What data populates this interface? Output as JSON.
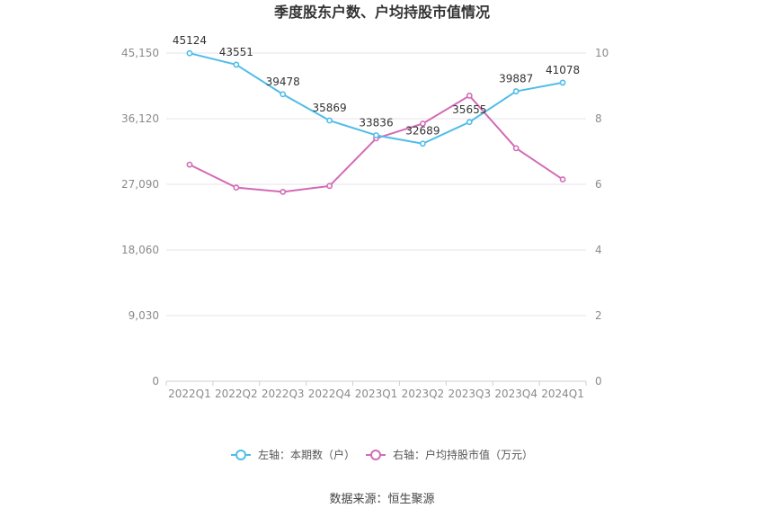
{
  "chart_data": {
    "type": "line",
    "title": "季度股东户数、户均持股市值情况",
    "categories": [
      "2022Q1",
      "2022Q2",
      "2022Q3",
      "2022Q4",
      "2023Q1",
      "2023Q2",
      "2023Q3",
      "2023Q4",
      "2024Q1"
    ],
    "left_axis": {
      "ticks": [
        "0",
        "9,030",
        "18,060",
        "27,090",
        "36,120",
        "45,150"
      ],
      "range": [
        0,
        45150
      ]
    },
    "right_axis": {
      "ticks": [
        "0",
        "2",
        "4",
        "6",
        "8",
        "10"
      ],
      "range": [
        0,
        10
      ]
    },
    "series": [
      {
        "name": "左轴：本期数（户）",
        "axis": "left",
        "color": "#4fbde8",
        "values": [
          45124,
          43551,
          39478,
          35869,
          33836,
          32689,
          35655,
          39887,
          41078
        ],
        "labels": [
          "45124",
          "43551",
          "39478",
          "35869",
          "33836",
          "32689",
          "35655",
          "39887",
          "41078"
        ]
      },
      {
        "name": "右轴：户均持股市值（万元）",
        "axis": "right",
        "color": "#d36bb5",
        "values": [
          6.6,
          5.9,
          5.77,
          5.95,
          7.4,
          7.85,
          8.7,
          7.1,
          6.15
        ]
      }
    ],
    "grid": true,
    "legend_position": "bottom"
  },
  "source_note": "数据来源：恒生聚源"
}
